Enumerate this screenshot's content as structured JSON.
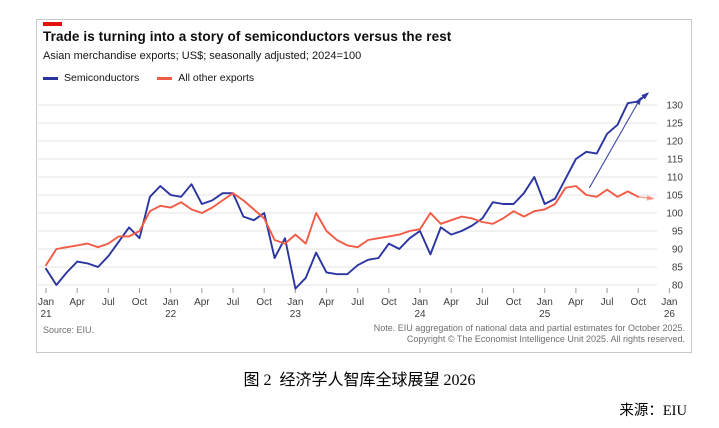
{
  "chart": {
    "tag_color": "#e3120b",
    "title": "Trade is turning into a story of semiconductors versus the rest",
    "subtitle": "Asian merchandise exports; US$; seasonally adjusted; 2024=100",
    "legend": [
      {
        "label": "Semiconductors",
        "color": "#2a35a0"
      },
      {
        "label": "All other exports",
        "color": "#f25b45"
      }
    ],
    "source": "Source: EIU.",
    "note_line1": "Note. EIU aggregation of national data and partial estimates for October 2025.",
    "note_line2": "Copyright © The Economist Intelligence Unit 2025. All rights reserved."
  },
  "caption": {
    "figure_label": "图 2  经济学人智库全球展望 2026",
    "source_label": "来源：EIU"
  },
  "chart_data": {
    "type": "line",
    "title": "Trade is turning into a story of semiconductors versus the rest",
    "x_unit": "month",
    "x_start": "Jan 2021",
    "x_end": "Oct 2025",
    "grid": true,
    "legend_position": "top-left",
    "y_axis_side": "right",
    "ylim": [
      78,
      133
    ],
    "y_ticks": [
      80,
      85,
      90,
      95,
      100,
      105,
      110,
      115,
      120,
      125,
      130
    ],
    "x_tick_labels": [
      {
        "m": "Jan",
        "y": "21"
      },
      {
        "m": "Apr"
      },
      {
        "m": "Jul"
      },
      {
        "m": "Oct"
      },
      {
        "m": "Jan",
        "y": "22"
      },
      {
        "m": "Apr"
      },
      {
        "m": "Jul"
      },
      {
        "m": "Oct"
      },
      {
        "m": "Jan",
        "y": "23"
      },
      {
        "m": "Apr"
      },
      {
        "m": "Jul"
      },
      {
        "m": "Oct"
      },
      {
        "m": "Jan",
        "y": "24"
      },
      {
        "m": "Apr"
      },
      {
        "m": "Jul"
      },
      {
        "m": "Oct"
      },
      {
        "m": "Jan",
        "y": "25"
      },
      {
        "m": "Apr"
      },
      {
        "m": "Jul"
      },
      {
        "m": "Oct"
      },
      {
        "m": "Jan",
        "y": "26"
      }
    ],
    "series": [
      {
        "name": "Semiconductors",
        "color": "#2a35a0",
        "values": [
          84.5,
          80,
          83.5,
          86.5,
          86,
          85,
          88,
          92,
          96,
          93,
          104.5,
          107.5,
          105,
          104.5,
          108,
          102.5,
          103.5,
          105.5,
          105.5,
          99,
          98,
          100,
          87.5,
          93,
          79,
          82,
          89,
          83.5,
          83,
          83,
          85.5,
          87,
          87.5,
          91.5,
          90,
          93,
          95,
          88.5,
          96,
          94,
          95,
          96.5,
          98.5,
          103,
          102.5,
          102.5,
          105.5,
          110,
          102.5,
          104,
          109.5,
          115,
          117,
          116.5,
          122,
          124.5,
          130.5,
          131
        ]
      },
      {
        "name": "All other exports",
        "color": "#f25b45",
        "values": [
          85.5,
          90,
          90.5,
          91,
          91.5,
          90.5,
          91.5,
          93.5,
          93.5,
          95,
          100.5,
          102,
          101.5,
          103,
          101,
          100,
          101.5,
          103.5,
          105.5,
          103.5,
          101,
          98.5,
          92.5,
          91.5,
          94,
          91.5,
          100,
          95,
          92.5,
          91,
          90.5,
          92.5,
          93,
          93.5,
          94,
          95,
          95.5,
          100,
          97,
          98,
          99,
          98.5,
          97.5,
          97,
          98.5,
          100.5,
          99,
          100.5,
          101,
          102.5,
          107,
          107.5,
          105,
          104.5,
          106.5,
          104.5,
          106,
          104.5
        ]
      }
    ],
    "arrows": [
      {
        "name": "semiconductors-trend-arrow",
        "from": [
          52.3,
          107
        ],
        "to": [
          57.2,
          131.8
        ],
        "color": "#2a35a0",
        "width": 1.1,
        "opacity": 0.9
      },
      {
        "name": "semiconductors-end-arrow",
        "from": [
          57,
          131
        ],
        "to": [
          57.9,
          133.2
        ],
        "color": "#2a35a0",
        "width": 2,
        "opacity": 1
      },
      {
        "name": "all-other-exports-end-arrow",
        "from": [
          57,
          104.5
        ],
        "to": [
          58.4,
          104
        ],
        "color": "#f25b45",
        "width": 1.6,
        "opacity": 0.5
      }
    ]
  }
}
